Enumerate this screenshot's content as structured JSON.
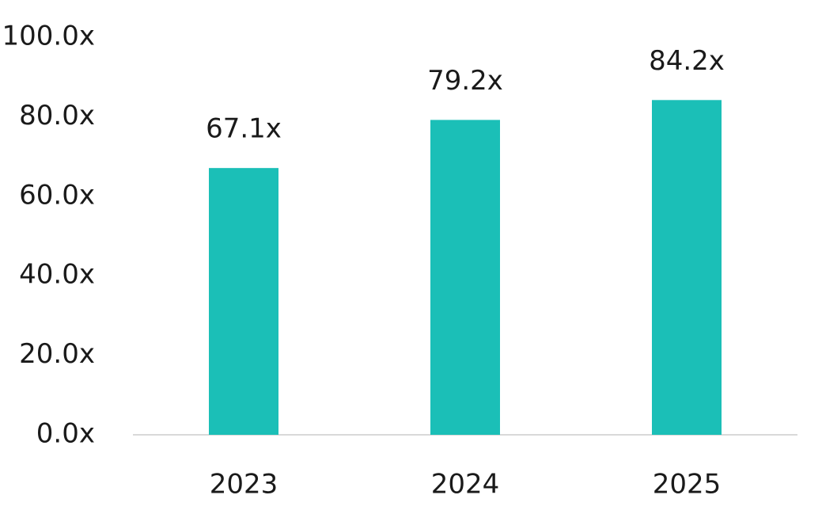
{
  "chart_data": {
    "type": "bar",
    "categories": [
      "2023",
      "2024",
      "2025"
    ],
    "values": [
      67.1,
      79.2,
      84.2
    ],
    "value_labels": [
      "67.1x",
      "79.2x",
      "84.2x"
    ],
    "color": "#1bbfb7",
    "ylim": [
      0,
      100
    ],
    "yticks": [
      {
        "value": 0,
        "label": "0.0x"
      },
      {
        "value": 20,
        "label": "20.0x"
      },
      {
        "value": 40,
        "label": "40.0x"
      },
      {
        "value": 60,
        "label": "60.0x"
      },
      {
        "value": 80,
        "label": "80.0x"
      },
      {
        "value": 100,
        "label": "100.0x"
      }
    ],
    "grid": false
  }
}
